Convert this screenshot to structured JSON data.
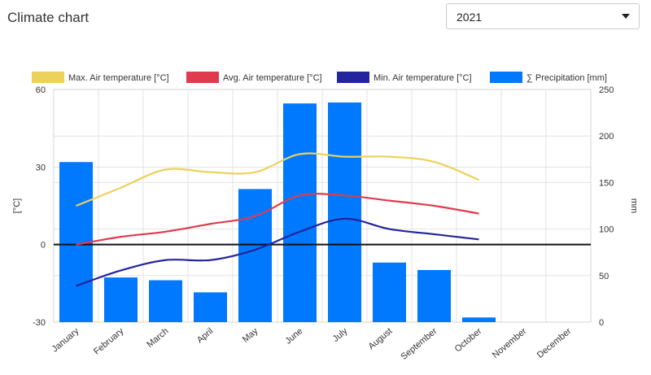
{
  "header": {
    "title": "Climate chart",
    "year_value": "2021"
  },
  "colors": {
    "max_temp": "#ecd15a",
    "avg_temp": "#e03a4e",
    "min_temp": "#24249c",
    "precip": "#0079ff",
    "zero_line": "#111111",
    "grid": "#e3e3e3",
    "axis_text": "#333333"
  },
  "chart_data": {
    "type": "bar",
    "categories": [
      "January",
      "February",
      "March",
      "April",
      "May",
      "June",
      "July",
      "August",
      "September",
      "October",
      "November",
      "December"
    ],
    "series": [
      {
        "name": "Max. Air temperature [°C]",
        "type": "line",
        "axis": "left",
        "values": [
          15,
          22,
          29,
          28,
          28,
          35,
          34,
          34,
          32,
          25,
          null,
          null
        ]
      },
      {
        "name": "Avg. Air temperature [°C]",
        "type": "line",
        "axis": "left",
        "values": [
          0,
          3,
          5,
          8,
          11,
          19,
          19,
          17,
          15,
          12,
          null,
          null
        ]
      },
      {
        "name": "Min. Air temperature [°C]",
        "type": "line",
        "axis": "left",
        "values": [
          -16,
          -10,
          -6,
          -6,
          -2,
          5,
          10,
          6,
          4,
          2,
          null,
          null
        ]
      },
      {
        "name": "∑ Precipitation [mm]",
        "type": "bar",
        "axis": "right",
        "values": [
          172,
          48,
          45,
          32,
          143,
          235,
          236,
          64,
          56,
          5,
          null,
          null
        ]
      }
    ],
    "y_left": {
      "label": "[°C]",
      "range": [
        -30,
        60
      ],
      "ticks": [
        "60",
        "30",
        "0",
        "-30"
      ]
    },
    "y_right": {
      "label": "mm",
      "range": [
        0,
        250
      ],
      "ticks": [
        "250",
        "200",
        "150",
        "100",
        "50",
        "0"
      ]
    },
    "legend_position": "top",
    "grid": true
  }
}
